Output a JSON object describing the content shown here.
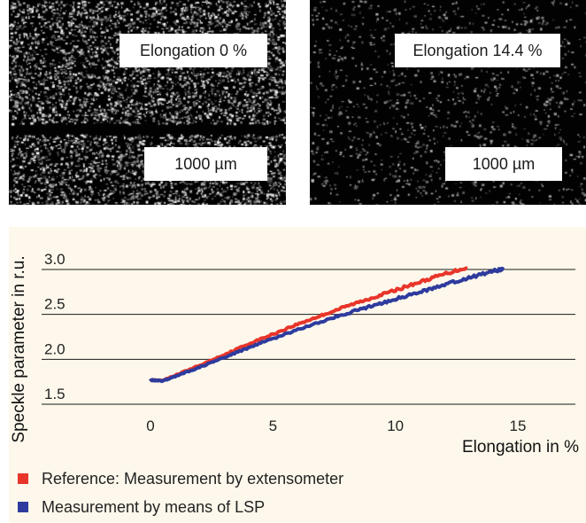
{
  "images": {
    "left": {
      "elongation_label": "Elongation 0 %",
      "scale_label": "1000 µm"
    },
    "right": {
      "elongation_label": "Elongation 14.4 %",
      "scale_label": "1000 µm"
    }
  },
  "legend": {
    "reference": {
      "label": "Reference: Measurement by extensometer",
      "color": "#e8352a"
    },
    "lsp": {
      "label": "Measurement by means of LSP",
      "color": "#2e3b9e"
    }
  },
  "chart_data": {
    "type": "line",
    "title": "",
    "xlabel": "Elongation in %",
    "ylabel": "Speckle parameter in r.u.",
    "xlim": [
      -5.7,
      17.8
    ],
    "ylim": [
      1.35,
      3.12
    ],
    "xticks": [
      0,
      5,
      10,
      15
    ],
    "yticks": [
      1.5,
      2.0,
      2.5,
      3.0
    ],
    "grid": "horizontal",
    "series": [
      {
        "name": "Reference: Measurement by extensometer",
        "color": "#e8352a",
        "x": [
          0,
          0.5,
          1,
          2,
          3,
          4,
          5,
          6,
          7,
          8,
          9,
          10,
          11,
          12,
          12.9
        ],
        "y": [
          1.77,
          1.76,
          1.82,
          1.93,
          2.05,
          2.17,
          2.28,
          2.39,
          2.49,
          2.59,
          2.68,
          2.77,
          2.86,
          2.95,
          3.02
        ]
      },
      {
        "name": "Measurement by means of LSP",
        "color": "#2e3b9e",
        "x": [
          0,
          0.5,
          1,
          2,
          3,
          4,
          5,
          6,
          7,
          8,
          9,
          10,
          11,
          12,
          13,
          14,
          14.4
        ],
        "y": [
          1.77,
          1.76,
          1.81,
          1.91,
          2.02,
          2.13,
          2.23,
          2.33,
          2.42,
          2.51,
          2.59,
          2.67,
          2.75,
          2.83,
          2.91,
          2.98,
          3.01
        ]
      }
    ]
  }
}
